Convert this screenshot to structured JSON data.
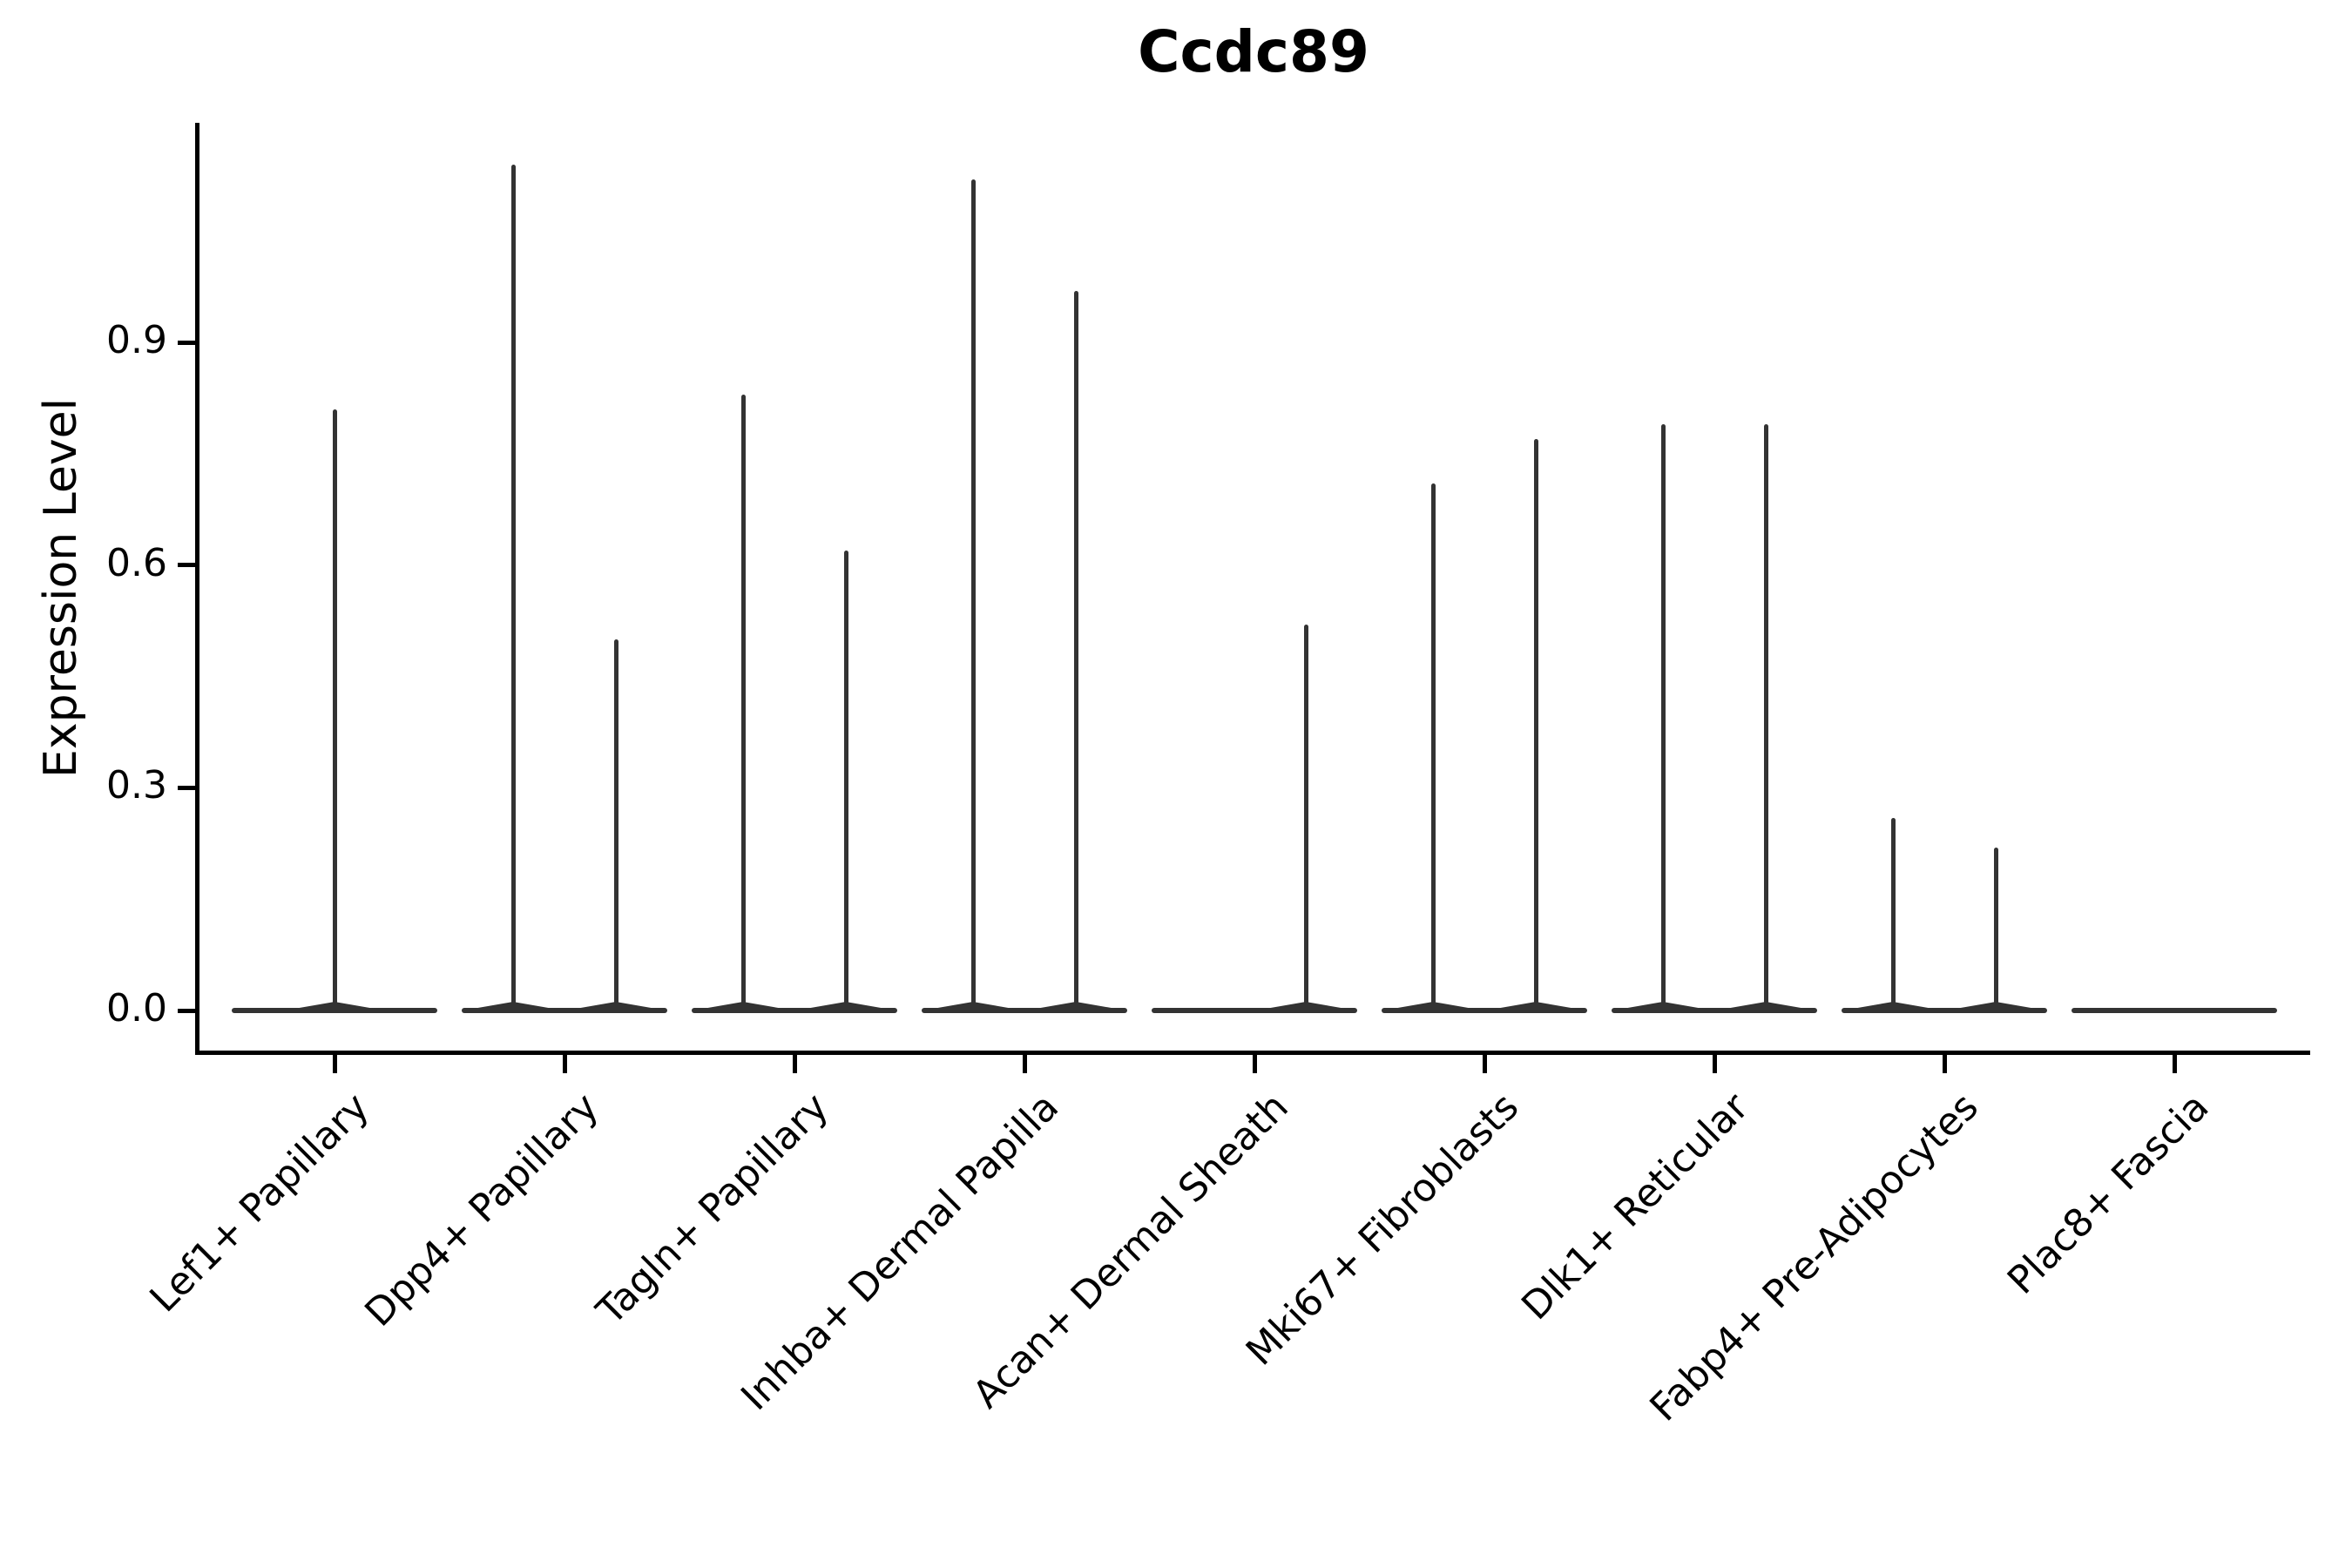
{
  "chart_data": {
    "type": "violin",
    "title": "Ccdc89",
    "xlabel": "",
    "ylabel": "Expression Level",
    "ytick_values": [
      0.0,
      0.3,
      0.6,
      0.9
    ],
    "ytick_labels": [
      "0.0",
      "0.3",
      "0.6",
      "0.9"
    ],
    "ylim": [
      -0.06,
      1.23
    ],
    "grid": "off",
    "legend": "none",
    "categories": [
      "Lef1+ Papillary",
      "Dpp4+ Papillary",
      "Tagln+ Papillary",
      "Inhba+ Dermal Papilla",
      "Acan+ Dermal Sheath",
      "Mki67+ Fibroblasts",
      "Dlk1+ Reticular",
      "Fabp4+ Pre-Adipocytes",
      "Plac8+ Fascia"
    ],
    "description": "Violin plot; bulk of expression density is at 0 for every group (flat violin base), with thin needle spikes reaching the maximum expression value of rare positive cells. Some categories contain two side-by-side violins (left/right), some one violin.",
    "violins": [
      {
        "category": "Lef1+ Papillary",
        "spikes": [
          {
            "slot": "center",
            "max": 0.81
          }
        ]
      },
      {
        "category": "Dpp4+ Papillary",
        "spikes": [
          {
            "slot": "left",
            "max": 1.14
          },
          {
            "slot": "right",
            "max": 0.5
          }
        ]
      },
      {
        "category": "Tagln+ Papillary",
        "spikes": [
          {
            "slot": "left",
            "max": 0.83
          },
          {
            "slot": "right",
            "max": 0.62
          }
        ]
      },
      {
        "category": "Inhba+ Dermal Papilla",
        "spikes": [
          {
            "slot": "left",
            "max": 1.12
          },
          {
            "slot": "right",
            "max": 0.97
          }
        ]
      },
      {
        "category": "Acan+ Dermal Sheath",
        "spikes": [
          {
            "slot": "right",
            "max": 0.52
          }
        ]
      },
      {
        "category": "Mki67+ Fibroblasts",
        "spikes": [
          {
            "slot": "left",
            "max": 0.71
          },
          {
            "slot": "right",
            "max": 0.77
          }
        ]
      },
      {
        "category": "Dlk1+ Reticular",
        "spikes": [
          {
            "slot": "left",
            "max": 0.79
          },
          {
            "slot": "right",
            "max": 0.79
          }
        ]
      },
      {
        "category": "Fabp4+ Pre-Adipocytes",
        "spikes": [
          {
            "slot": "left",
            "max": 0.26
          },
          {
            "slot": "right",
            "max": 0.22
          }
        ]
      },
      {
        "category": "Plac8+ Fascia",
        "spikes": []
      }
    ],
    "baseline_value": 0.0,
    "colors": {
      "violin": "#333333",
      "axis": "#000000",
      "text": "#000000",
      "background": "#ffffff"
    }
  }
}
